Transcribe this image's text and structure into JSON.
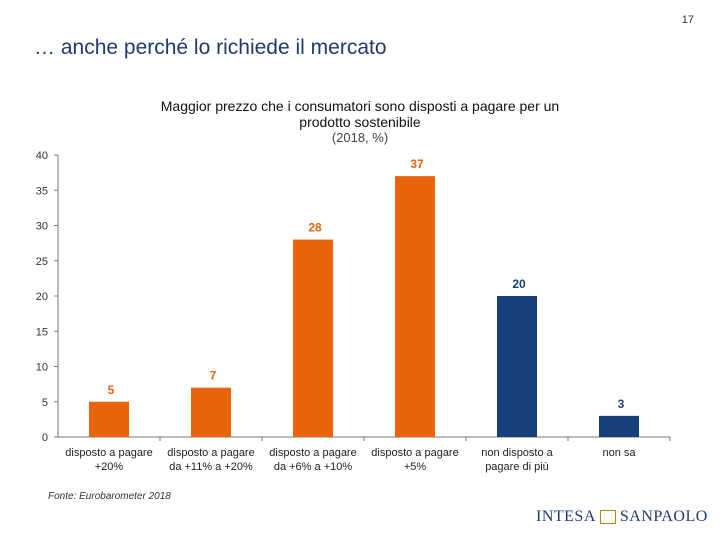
{
  "page": {
    "number": "17",
    "title": "… anche perché lo richiede il mercato"
  },
  "source": "Fonte: Eurobarometer 2018",
  "logo": {
    "left_text": "INTESA",
    "right_text": "SANPAOLO"
  },
  "colors": {
    "orange": "#e8630a",
    "navy": "#17407a",
    "axis": "#777777"
  },
  "chart_data": {
    "type": "bar",
    "title": "Maggior prezzo che i consumatori sono disposti a pagare per un prodotto sostenibile",
    "subtitle": "(2018, %)",
    "categories": [
      [
        "disposto a pagare",
        "+20%"
      ],
      [
        "disposto a pagare",
        "da +11% a +20%"
      ],
      [
        "disposto a pagare",
        "da +6% a +10%"
      ],
      [
        "disposto a pagare",
        "+5%"
      ],
      [
        "non disposto a",
        "pagare di più"
      ],
      [
        "non sa"
      ]
    ],
    "values": [
      5,
      7,
      28,
      37,
      20,
      3
    ],
    "bar_colors": [
      "orange",
      "orange",
      "orange",
      "orange",
      "navy",
      "navy"
    ],
    "label_colors": [
      "orange",
      "orange",
      "orange",
      "orange",
      "navy",
      "navy"
    ],
    "ylim": [
      0,
      40
    ],
    "yticks": [
      0,
      5,
      10,
      15,
      20,
      25,
      30,
      35,
      40
    ]
  }
}
